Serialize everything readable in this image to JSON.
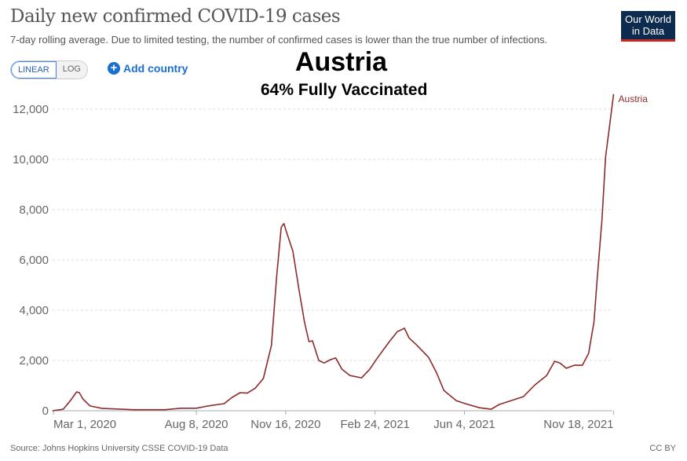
{
  "header": {
    "title": "Daily new confirmed COVID-19 cases",
    "subtitle": "7-day rolling average. Due to limited testing, the number of confirmed cases is lower than the true number of infections.",
    "logo": "Our World in Data"
  },
  "controls": {
    "linear": "LINEAR",
    "log": "LOG",
    "add_country": "Add country"
  },
  "overlay": {
    "country": "Austria",
    "vaccinated": "64% Fully Vaccinated"
  },
  "footer": {
    "source": "Source: Johns Hopkins University CSSE COVID-19 Data",
    "license": "CC BY"
  },
  "chart_data": {
    "type": "line",
    "title": "Daily new confirmed COVID-19 cases",
    "x_unit": "days since Mar 1, 2020",
    "ylim": [
      0,
      12000
    ],
    "yticks": [
      0,
      2000,
      4000,
      6000,
      8000,
      10000,
      12000
    ],
    "ytick_labels": [
      "0",
      "2,000",
      "4,000",
      "6,000",
      "8,000",
      "10,000",
      "12,000"
    ],
    "xticks": [
      0,
      160,
      260,
      360,
      460,
      627
    ],
    "xtick_labels": [
      "Mar 1, 2020",
      "Aug 8, 2020",
      "Nov 16, 2020",
      "Feb 24, 2021",
      "Jun 4, 2021",
      "Nov 18, 2021"
    ],
    "grid": true,
    "color": "#8c2b2b",
    "series": [
      {
        "name": "Austria",
        "points": [
          [
            -1,
            0
          ],
          [
            11,
            60
          ],
          [
            19,
            400
          ],
          [
            26,
            750
          ],
          [
            29,
            720
          ],
          [
            33,
            470
          ],
          [
            41,
            190
          ],
          [
            55,
            90
          ],
          [
            90,
            40
          ],
          [
            125,
            40
          ],
          [
            143,
            100
          ],
          [
            160,
            100
          ],
          [
            173,
            190
          ],
          [
            191,
            280
          ],
          [
            200,
            530
          ],
          [
            209,
            720
          ],
          [
            217,
            700
          ],
          [
            226,
            900
          ],
          [
            235,
            1280
          ],
          [
            244,
            2600
          ],
          [
            250,
            5400
          ],
          [
            255,
            7300
          ],
          [
            258,
            7450
          ],
          [
            261,
            7100
          ],
          [
            268,
            6350
          ],
          [
            275,
            4800
          ],
          [
            281,
            3530
          ],
          [
            286,
            2750
          ],
          [
            290,
            2780
          ],
          [
            297,
            2000
          ],
          [
            303,
            1900
          ],
          [
            310,
            2030
          ],
          [
            316,
            2100
          ],
          [
            323,
            1650
          ],
          [
            332,
            1400
          ],
          [
            345,
            1310
          ],
          [
            354,
            1650
          ],
          [
            363,
            2120
          ],
          [
            376,
            2750
          ],
          [
            385,
            3150
          ],
          [
            393,
            3280
          ],
          [
            398,
            2900
          ],
          [
            407,
            2600
          ],
          [
            420,
            2120
          ],
          [
            429,
            1500
          ],
          [
            437,
            810
          ],
          [
            451,
            400
          ],
          [
            464,
            250
          ],
          [
            477,
            120
          ],
          [
            490,
            60
          ],
          [
            499,
            250
          ],
          [
            512,
            400
          ],
          [
            526,
            560
          ],
          [
            539,
            1030
          ],
          [
            552,
            1400
          ],
          [
            561,
            1970
          ],
          [
            567,
            1900
          ],
          [
            574,
            1690
          ],
          [
            583,
            1810
          ],
          [
            592,
            1810
          ],
          [
            599,
            2280
          ],
          [
            605,
            3530
          ],
          [
            609,
            5400
          ],
          [
            614,
            7600
          ],
          [
            618,
            10100
          ],
          [
            622,
            11190
          ],
          [
            627,
            12600
          ]
        ]
      }
    ]
  }
}
